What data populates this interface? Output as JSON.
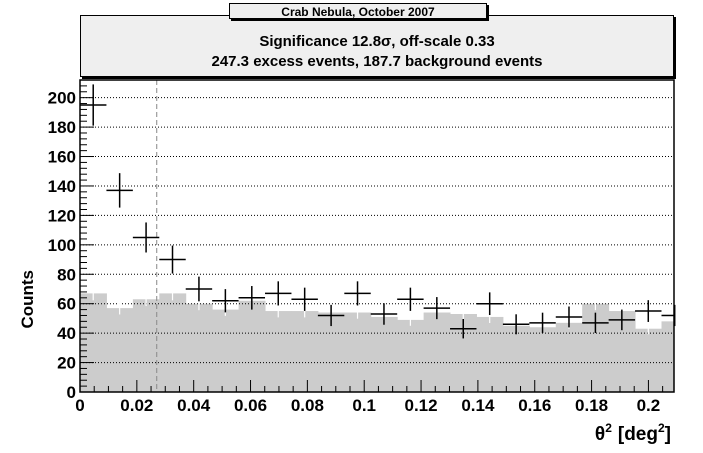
{
  "title": "Crab Nebula, October 2007",
  "stats": {
    "line1": "Significance 12.8σ,  off-scale 0.33",
    "line2": "247.3 excess events,  187.7 background events"
  },
  "chart_data": {
    "type": "bar",
    "xlabel_main": "θ",
    "xlabel_sup": "2",
    "xlabel_unit": "[deg",
    "xlabel_unit_sup": "2",
    "xlabel_close": "]",
    "ylabel": "Counts",
    "xlim": [
      0,
      0.209
    ],
    "ylim": [
      0,
      212
    ],
    "xticks": [
      0,
      0.02,
      0.04,
      0.06,
      0.08,
      0.1,
      0.12,
      0.14,
      0.16,
      0.18,
      0.2
    ],
    "xtick_labels": [
      "0",
      "0.02",
      "0.04",
      "0.06",
      "0.08",
      "0.1",
      "0.12",
      "0.14",
      "0.16",
      "0.18",
      "0.2"
    ],
    "yticks": [
      0,
      20,
      40,
      60,
      80,
      100,
      120,
      140,
      160,
      180,
      200
    ],
    "ytick_labels": [
      "0",
      "20",
      "40",
      "60",
      "80",
      "100",
      "120",
      "140",
      "160",
      "180",
      "200"
    ],
    "bin_width": 0.0093,
    "cut": 0.027,
    "grid": "horizontal dotted",
    "background_color": "#cccccc",
    "on_counts": [
      195,
      137,
      105,
      90,
      70,
      62,
      64,
      67,
      63,
      52,
      67,
      53,
      63,
      57,
      43,
      60,
      46,
      47,
      51,
      47,
      49,
      55,
      52
    ],
    "on_errors": [
      14,
      11.7,
      10.2,
      9.5,
      8.4,
      7.9,
      8,
      8.2,
      7.9,
      7.2,
      8.2,
      7.3,
      7.9,
      7.5,
      6.6,
      7.7,
      6.8,
      6.9,
      7.1,
      6.9,
      7,
      7.4,
      7.2
    ],
    "off_counts": [
      67,
      57,
      63,
      67,
      60,
      56,
      62,
      55,
      55,
      54,
      54,
      51,
      49,
      54,
      53,
      51,
      45,
      44,
      47,
      60,
      55,
      43,
      48
    ],
    "off_errors": [
      4.7,
      4.3,
      4.6,
      4.7,
      4.4,
      4.3,
      4.5,
      4.3,
      4.3,
      4.2,
      4.2,
      4.1,
      4,
      4.2,
      4.2,
      4.1,
      3.9,
      3.8,
      4,
      4.4,
      4.3,
      3.8,
      4
    ]
  }
}
